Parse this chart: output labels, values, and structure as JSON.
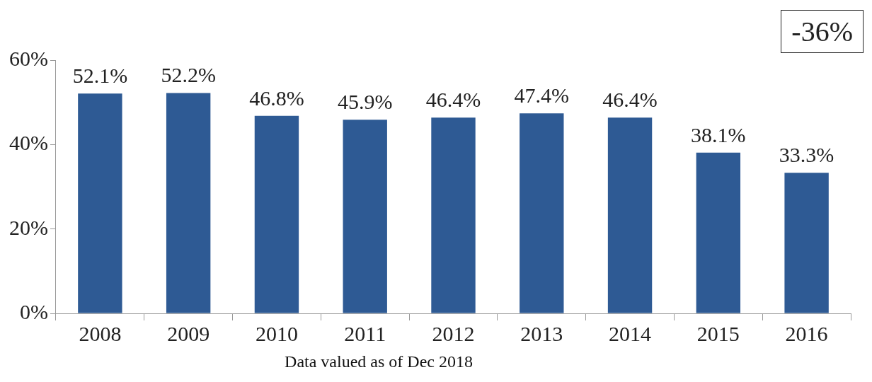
{
  "chart_data": {
    "type": "bar",
    "categories": [
      "2008",
      "2009",
      "2010",
      "2011",
      "2012",
      "2013",
      "2014",
      "2015",
      "2016"
    ],
    "values": [
      52.1,
      52.2,
      46.8,
      45.9,
      46.4,
      47.4,
      46.4,
      38.1,
      33.3
    ],
    "value_labels": [
      "52.1%",
      "52.2%",
      "46.8%",
      "45.9%",
      "46.4%",
      "47.4%",
      "46.4%",
      "38.1%",
      "33.3%"
    ],
    "color": "#2e5a94",
    "ylim": [
      0,
      60
    ],
    "yticks": [
      {
        "value": 0,
        "label": "0%"
      },
      {
        "value": 20,
        "label": "20%"
      },
      {
        "value": 40,
        "label": "40%"
      },
      {
        "value": 60,
        "label": "60%"
      }
    ],
    "annotations": [
      "-36%",
      "Data valued as of Dec 2018"
    ]
  }
}
